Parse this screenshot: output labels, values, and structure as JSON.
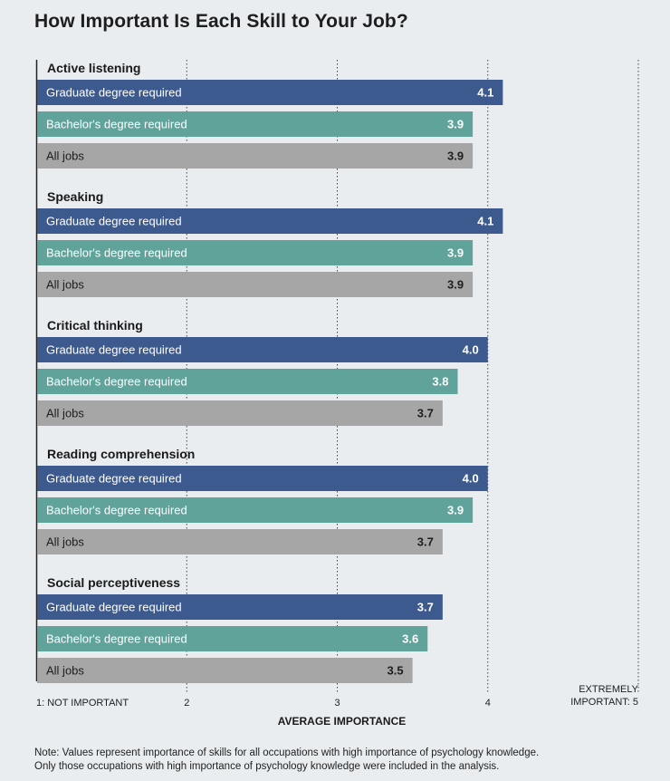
{
  "title": "How Important Is Each Skill to Your Job?",
  "chart_data": {
    "type": "bar",
    "orientation": "horizontal",
    "xlabel": "AVERAGE IMPORTANCE",
    "xlim": [
      1,
      5
    ],
    "ticks": [
      {
        "value": 1,
        "label": "1: NOT IMPORTANT"
      },
      {
        "value": 2,
        "label": "2"
      },
      {
        "value": 3,
        "label": "3"
      },
      {
        "value": 4,
        "label": "4"
      },
      {
        "value": 5,
        "label": "EXTREMELY IMPORTANT: 5",
        "lines": [
          "EXTREMELY",
          "IMPORTANT: 5"
        ]
      }
    ],
    "grid": "dotted vertical lines at 2, 3, 4, 5",
    "series": [
      {
        "name": "Graduate degree required",
        "color": "#3d5a8e"
      },
      {
        "name": "Bachelor's degree required",
        "color": "#5fa39a"
      },
      {
        "name": "All jobs",
        "color": "#a6a6a6"
      }
    ],
    "groups": [
      {
        "skill": "Active listening",
        "bars": [
          {
            "label": "Graduate degree required",
            "value": 4.1
          },
          {
            "label": "Bachelor's degree required",
            "value": 3.9
          },
          {
            "label": "All jobs",
            "value": 3.9
          }
        ]
      },
      {
        "skill": "Speaking",
        "bars": [
          {
            "label": "Graduate degree required",
            "value": 4.1
          },
          {
            "label": "Bachelor's degree required",
            "value": 3.9
          },
          {
            "label": "All jobs",
            "value": 3.9
          }
        ]
      },
      {
        "skill": "Critical thinking",
        "bars": [
          {
            "label": "Graduate degree required",
            "value": 4.0
          },
          {
            "label": "Bachelor's degree required",
            "value": 3.8
          },
          {
            "label": "All jobs",
            "value": 3.7
          }
        ]
      },
      {
        "skill": "Reading comprehension",
        "bars": [
          {
            "label": "Graduate degree required",
            "value": 4.0
          },
          {
            "label": "Bachelor's degree required",
            "value": 3.9
          },
          {
            "label": "All jobs",
            "value": 3.7
          }
        ]
      },
      {
        "skill": "Social perceptiveness",
        "bars": [
          {
            "label": "Graduate degree required",
            "value": 3.7
          },
          {
            "label": "Bachelor's degree required",
            "value": 3.6
          },
          {
            "label": "All jobs",
            "value": 3.5
          }
        ]
      }
    ]
  },
  "note": {
    "line1": "Note: Values represent importance of skills for all occupations with high importance of psychology knowledge.",
    "line2": "Only those occupations with high importance of psychology knowledge were included in the analysis."
  }
}
